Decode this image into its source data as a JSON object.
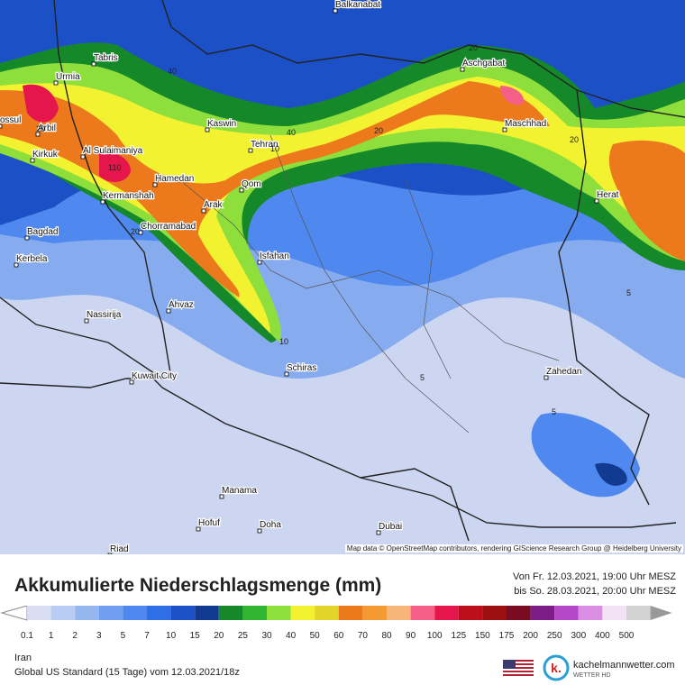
{
  "map": {
    "cities": [
      "Balkanabat",
      "Tabris",
      "Urmia",
      "Aschgabat",
      "ossul",
      "Arbil",
      "Kaswin",
      "Maschhad",
      "Tehran",
      "Kirkuk",
      "Al Sulaimaniya",
      "Hamedan",
      "Kermanshah",
      "Qom",
      "Herat",
      "Arak",
      "Chorramabad",
      "Bagdad",
      "Isfahan",
      "Kerbela",
      "Nassirija",
      "Ahvaz",
      "Schiras",
      "Kuwait City",
      "Zahedan",
      "Manama",
      "Hofuf",
      "Doha",
      "Dubai",
      "Riad"
    ],
    "contour_labels": [
      "40",
      "20",
      "40",
      "20",
      "20",
      "110",
      "10",
      "20",
      "5",
      "10",
      "5",
      "5",
      "20"
    ],
    "attribution": "Map data © OpenStreetMap contributors, rendering GIScience Research Group @ Heidelberg University"
  },
  "legend": {
    "title": "Akkumulierte Niederschlagsmenge (mm)",
    "from": "Von Fr. 12.03.2021, 19:00 Uhr MESZ",
    "to": "bis So. 28.03.2021, 20:00 Uhr MESZ",
    "labels": [
      0.1,
      1,
      2,
      3,
      5,
      7,
      10,
      15,
      20,
      25,
      30,
      40,
      50,
      60,
      70,
      80,
      90,
      100,
      125,
      150,
      175,
      200,
      250,
      300,
      400,
      500
    ],
    "colors": [
      "#d9ddf3",
      "#b9cdf2",
      "#94b7f0",
      "#709ff0",
      "#4f88ee",
      "#2f6fe6",
      "#1c50c6",
      "#133a92",
      "#15892a",
      "#2fb52f",
      "#8fdf3c",
      "#f2f231",
      "#e3d42b",
      "#ec7a1c",
      "#f39a33",
      "#f7b57a",
      "#f45f87",
      "#e4164b",
      "#bd0e1b",
      "#9c0f10",
      "#7a0b22",
      "#7d1d88",
      "#b548c6",
      "#d98ee4",
      "#f2e2f4",
      "#d2d2d2"
    ]
  },
  "footer": {
    "region": "Iran",
    "model": "Global US Standard (15 Tage) vom 12.03.2021/18z",
    "brand": "kachelmannwetter.com",
    "brand_sub": "WETTER HD"
  }
}
